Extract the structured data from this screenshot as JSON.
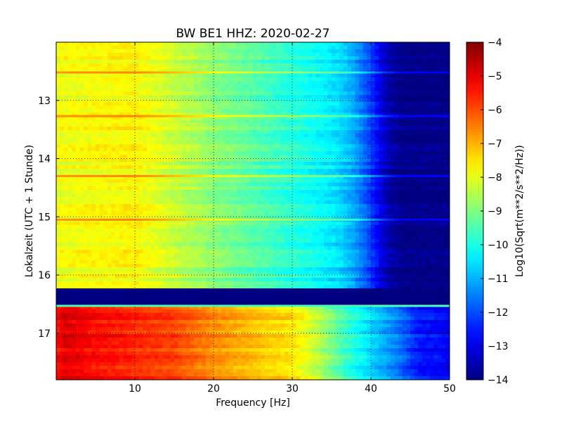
{
  "chart_data": {
    "type": "heatmap",
    "title": "BW BE1 HHZ: 2020-02-27",
    "xlabel": "Frequency [Hz]",
    "ylabel": "Lokalzeit (UTC + 1 Stunde)",
    "colorbar_label": "Log10(Sqrt(m**2/s**2/Hz))",
    "colormap": "jet",
    "xlim": [
      0,
      50
    ],
    "ylim": [
      12.0,
      17.8
    ],
    "y_inverted": true,
    "clim": [
      -14,
      -4
    ],
    "grid": true,
    "x_ticks": [
      10,
      20,
      30,
      40,
      50
    ],
    "y_ticks": [
      13,
      14,
      15,
      16,
      17
    ],
    "colorbar_ticks": [
      -4,
      -5,
      -6,
      -7,
      -8,
      -9,
      -10,
      -11,
      -12,
      -13,
      -14
    ],
    "gap": [
      16.25,
      16.52
    ],
    "regime_before_gap": {
      "time_range": [
        12.0,
        16.25
      ],
      "frequency_hz": [
        0,
        5,
        10,
        15,
        20,
        25,
        30,
        33,
        36,
        38,
        40,
        42,
        44,
        46,
        50
      ],
      "value": [
        -7.9,
        -7.8,
        -7.7,
        -8.3,
        -8.9,
        -9.4,
        -9.9,
        -10.2,
        -10.6,
        -11.2,
        -12.2,
        -13.5,
        -14,
        -14,
        -14
      ]
    },
    "regime_after_gap": {
      "time_range": [
        16.52,
        17.8
      ],
      "frequency_hz": [
        0,
        1,
        5,
        10,
        15,
        20,
        25,
        30,
        33,
        36,
        38,
        40,
        43,
        46,
        50
      ],
      "value": [
        -5.4,
        -4.9,
        -5.3,
        -5.6,
        -5.9,
        -6.6,
        -7.1,
        -7.5,
        -8.3,
        -9.4,
        -10.0,
        -10.6,
        -11.4,
        -12.5,
        -12.8
      ]
    },
    "bright_lines": [
      12.52,
      13.27,
      14.3,
      15.05,
      16.53
    ]
  }
}
